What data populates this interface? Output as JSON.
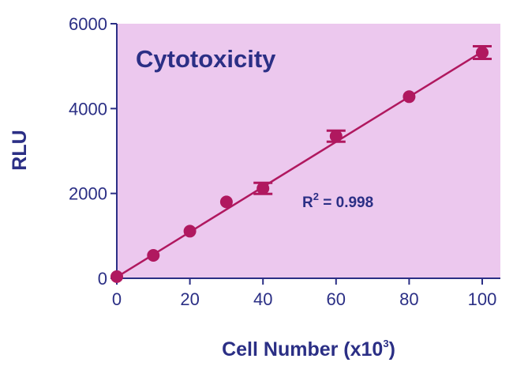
{
  "colors": {
    "plot_background": "#ecc8ee",
    "axis": "#2b2f85",
    "text": "#2b2f85",
    "series": "#b0185f"
  },
  "chart_data": {
    "type": "scatter",
    "title": "Cytotoxicity",
    "xlabel": "Cell Number (x10",
    "xlabel_superscript": "3",
    "xlabel_suffix": ")",
    "ylabel": "RLU",
    "xlim": [
      0,
      100
    ],
    "ylim": [
      0,
      6000
    ],
    "x_ticks": [
      0,
      20,
      40,
      60,
      80,
      100
    ],
    "y_ticks": [
      0,
      2000,
      4000,
      6000
    ],
    "x_tick_labels": [
      "0",
      "20",
      "40",
      "60",
      "80",
      "100"
    ],
    "y_tick_labels": [
      "0",
      "2000",
      "4000",
      "6000"
    ],
    "grid": false,
    "points": [
      {
        "x": 0,
        "y": 40,
        "err": 0
      },
      {
        "x": 10,
        "y": 540,
        "err": 0
      },
      {
        "x": 20,
        "y": 1110,
        "err": 0
      },
      {
        "x": 30,
        "y": 1800,
        "err": 0
      },
      {
        "x": 40,
        "y": 2120,
        "err": 130
      },
      {
        "x": 60,
        "y": 3350,
        "err": 130
      },
      {
        "x": 80,
        "y": 4280,
        "err": 0
      },
      {
        "x": 100,
        "y": 5320,
        "err": 150
      }
    ],
    "fit_line": {
      "x": [
        0,
        100
      ],
      "y": [
        30,
        5340
      ]
    },
    "annotation": {
      "prefix": "R",
      "superscript": "2",
      "text": " = 0.998"
    }
  }
}
